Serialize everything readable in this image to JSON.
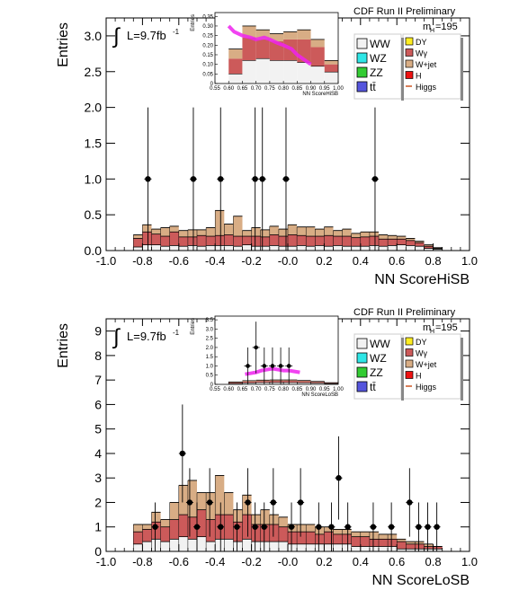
{
  "legend_items": [
    {
      "label": "WW",
      "color": "#f2f2f2",
      "col": 0
    },
    {
      "label": "WZ",
      "color": "#2ee6e6",
      "col": 0
    },
    {
      "label": "ZZ",
      "color": "#33cc33",
      "col": 0
    },
    {
      "label": "tt̄",
      "color": "#5555dd",
      "col": 0
    },
    {
      "label": "DY",
      "color": "#ffee22",
      "col": 1
    },
    {
      "label": "Wγ",
      "color": "#cc5a5a",
      "col": 1
    },
    {
      "label": "W+jet",
      "color": "#d8ad85",
      "col": 1
    },
    {
      "label": "H",
      "color": "#ee1111",
      "col": 1
    },
    {
      "label": "Higgs",
      "color": "#cc5522",
      "col": 1,
      "line": true
    }
  ],
  "chart_data": [
    {
      "id": "top",
      "type": "bar",
      "header": "CDF Run II Preliminary",
      "mass_label": "m",
      "mass_sub": "H",
      "mass_value": "=195",
      "lumi_label": "L=9.7fb",
      "lumi_sup": "-1",
      "integral": "∫",
      "ylabel": "Entries",
      "xlabel": "NN ScoreHiSB",
      "xlim": [
        -1.0,
        1.0
      ],
      "ylim": [
        0,
        3.25
      ],
      "xticks": [
        "-1.0",
        "-0.8",
        "-0.6",
        "-0.4",
        "-0.2",
        "-0.0",
        "0.2",
        "0.4",
        "0.6",
        "0.8",
        "1.0"
      ],
      "xtick_values": [
        -1.0,
        -0.8,
        -0.6,
        -0.4,
        -0.2,
        0.0,
        0.2,
        0.4,
        0.6,
        0.8,
        1.0
      ],
      "yticks": [
        "0.0",
        "0.5",
        "1.0",
        "1.5",
        "2.0",
        "2.5",
        "3.0"
      ],
      "ytick_values": [
        0,
        0.5,
        1.0,
        1.5,
        2.0,
        2.5,
        3.0
      ],
      "bin_edges_start": -0.85,
      "bin_width": 0.05,
      "stack": {
        "ww": [
          0.05,
          0.08,
          0.08,
          0.06,
          0.07,
          0.06,
          0.07,
          0.06,
          0.07,
          0.07,
          0.07,
          0.06,
          0.08,
          0.06,
          0.06,
          0.07,
          0.06,
          0.06,
          0.07,
          0.06,
          0.07,
          0.06,
          0.07,
          0.06,
          0.06,
          0.06,
          0.07,
          0.06,
          0.07,
          0.08,
          0.07,
          0.06,
          0.03,
          0.02
        ],
        "wg": [
          0.12,
          0.18,
          0.15,
          0.14,
          0.19,
          0.13,
          0.12,
          0.15,
          0.13,
          0.14,
          0.15,
          0.14,
          0.12,
          0.14,
          0.13,
          0.15,
          0.14,
          0.16,
          0.14,
          0.14,
          0.13,
          0.15,
          0.13,
          0.14,
          0.12,
          0.13,
          0.13,
          0.1,
          0.09,
          0.08,
          0.07,
          0.05,
          0.03,
          0.01
        ],
        "wjet": [
          0.05,
          0.1,
          0.07,
          0.12,
          0.08,
          0.09,
          0.1,
          0.08,
          0.12,
          0.35,
          0.15,
          0.28,
          0.08,
          0.12,
          0.1,
          0.12,
          0.1,
          0.14,
          0.12,
          0.13,
          0.1,
          0.12,
          0.08,
          0.1,
          0.06,
          0.07,
          0.06,
          0.06,
          0.05,
          0.04,
          0.03,
          0.02,
          0.02,
          0.01
        ],
        "total": [
          0.22,
          0.36,
          0.3,
          0.32,
          0.34,
          0.28,
          0.29,
          0.29,
          0.32,
          0.56,
          0.37,
          0.48,
          0.28,
          0.32,
          0.29,
          0.34,
          0.3,
          0.36,
          0.33,
          0.33,
          0.3,
          0.33,
          0.28,
          0.3,
          0.24,
          0.26,
          0.26,
          0.22,
          0.21,
          0.2,
          0.17,
          0.13,
          0.08,
          0.04
        ]
      },
      "data_points": {
        "x": [
          -0.77,
          -0.52,
          -0.37,
          -0.18,
          -0.14,
          -0.01,
          0.48
        ],
        "y": [
          1,
          1,
          1,
          1,
          1,
          1,
          1
        ],
        "err": [
          1.0,
          1.0,
          1.0,
          1.0,
          1.0,
          1.0,
          1.0
        ]
      },
      "inset": {
        "ylabel": "Entries",
        "xlabel": "NN ScoreHiSB",
        "xlim": [
          0.55,
          1.0
        ],
        "ylim": [
          0,
          0.37
        ],
        "xticks": [
          "0.55",
          "0.60",
          "0.65",
          "0.70",
          "0.75",
          "0.80",
          "0.85",
          "0.90",
          "0.95",
          "1.00"
        ],
        "xtick_values": [
          0.55,
          0.6,
          0.65,
          0.7,
          0.75,
          0.8,
          0.85,
          0.9,
          0.95,
          1.0
        ],
        "yticks": [
          "0",
          "0.05",
          "0.10",
          "0.15",
          "0.20",
          "0.25",
          "0.30",
          "0.35"
        ],
        "ytick_values": [
          0,
          0.05,
          0.1,
          0.15,
          0.2,
          0.25,
          0.3,
          0.35
        ],
        "bin_edges": [
          0.6,
          0.65,
          0.7,
          0.75,
          0.8,
          0.85,
          0.9,
          0.95
        ],
        "ww": [
          0.05,
          0.12,
          0.13,
          0.12,
          0.12,
          0.11,
          0.09,
          0.06
        ],
        "wg": [
          0.08,
          0.12,
          0.1,
          0.1,
          0.11,
          0.12,
          0.1,
          0.04
        ],
        "wjet": [
          0.05,
          0.06,
          0.05,
          0.04,
          0.04,
          0.05,
          0.04,
          0.02
        ],
        "total": [
          0.18,
          0.3,
          0.28,
          0.26,
          0.27,
          0.28,
          0.23,
          0.12
        ],
        "higgs_x": [
          0.6,
          0.62,
          0.65,
          0.68,
          0.7,
          0.73,
          0.75,
          0.78,
          0.8,
          0.83,
          0.85,
          0.88,
          0.9
        ],
        "higgs_y": [
          0.3,
          0.27,
          0.25,
          0.24,
          0.23,
          0.24,
          0.23,
          0.21,
          0.2,
          0.18,
          0.15,
          0.12,
          0.1
        ]
      }
    },
    {
      "id": "bottom",
      "type": "bar",
      "header": "CDF Run II Preliminary",
      "mass_label": "m",
      "mass_sub": "H",
      "mass_value": "=195",
      "lumi_label": "L=9.7fb",
      "lumi_sup": "-1",
      "integral": "∫",
      "ylabel": "Entries",
      "xlabel": "NN ScoreLoSB",
      "xlim": [
        -1.0,
        1.0
      ],
      "ylim": [
        0,
        9.5
      ],
      "xticks": [
        "-1.0",
        "-0.8",
        "-0.6",
        "-0.4",
        "-0.2",
        "-0.0",
        "0.2",
        "0.4",
        "0.6",
        "0.8",
        "1.0"
      ],
      "xtick_values": [
        -1.0,
        -0.8,
        -0.6,
        -0.4,
        -0.2,
        0.0,
        0.2,
        0.4,
        0.6,
        0.8,
        1.0
      ],
      "yticks": [
        "0",
        "1",
        "2",
        "3",
        "4",
        "5",
        "6",
        "7",
        "8",
        "9"
      ],
      "ytick_values": [
        0,
        1,
        2,
        3,
        4,
        5,
        6,
        7,
        8,
        9
      ],
      "bin_edges_start": -0.85,
      "bin_width": 0.05,
      "stack": {
        "ww": [
          0.3,
          0.4,
          0.5,
          0.4,
          0.5,
          0.6,
          0.5,
          0.6,
          0.4,
          0.5,
          0.5,
          0.4,
          0.5,
          0.4,
          0.4,
          0.4,
          0.4,
          0.3,
          0.3,
          0.3,
          0.3,
          0.3,
          0.3,
          0.3,
          0.2,
          0.2,
          0.2,
          0.2,
          0.2,
          0.1,
          0.1,
          0.1,
          0.1,
          0.1
        ],
        "wg": [
          0.5,
          0.5,
          0.7,
          0.6,
          0.8,
          0.9,
          0.9,
          1.1,
          0.9,
          1.0,
          1.0,
          0.8,
          1.0,
          0.7,
          0.7,
          0.7,
          0.6,
          0.5,
          0.5,
          0.5,
          0.4,
          0.5,
          0.4,
          0.4,
          0.4,
          0.4,
          0.3,
          0.3,
          0.3,
          0.3,
          0.2,
          0.2,
          0.1,
          0.1
        ],
        "wjet": [
          0.3,
          0.2,
          0.4,
          0.3,
          0.7,
          1.2,
          1.5,
          0.7,
          1.1,
          1.6,
          0.9,
          0.5,
          0.8,
          0.4,
          0.6,
          0.4,
          0.4,
          0.3,
          0.3,
          0.3,
          0.3,
          0.2,
          0.2,
          0.2,
          0.2,
          0.2,
          0.3,
          0.2,
          0.2,
          0.1,
          0.1,
          0.1,
          0.1,
          0.0
        ],
        "total": [
          1.1,
          1.1,
          1.6,
          1.3,
          2.0,
          2.7,
          2.9,
          2.4,
          2.4,
          3.1,
          2.4,
          1.7,
          2.3,
          1.5,
          1.7,
          1.5,
          1.4,
          1.1,
          1.1,
          1.1,
          1.0,
          1.0,
          0.9,
          0.9,
          0.8,
          0.8,
          0.8,
          0.7,
          0.7,
          0.5,
          0.4,
          0.4,
          0.3,
          0.2
        ]
      },
      "data_points": {
        "x": [
          -0.73,
          -0.58,
          -0.54,
          -0.5,
          -0.43,
          -0.37,
          -0.28,
          -0.22,
          -0.18,
          -0.13,
          -0.08,
          0.02,
          0.07,
          0.17,
          0.24,
          0.28,
          0.33,
          0.47,
          0.57,
          0.67,
          0.72,
          0.77,
          0.82
        ],
        "y": [
          1,
          4,
          2,
          1,
          2,
          1,
          1,
          2,
          1,
          1,
          2,
          1,
          2,
          1,
          1,
          3,
          1,
          1,
          1,
          2,
          1,
          1,
          1
        ],
        "err": [
          1.0,
          2.0,
          1.4,
          1.0,
          1.4,
          1.0,
          1.0,
          1.4,
          1.0,
          1.0,
          1.4,
          1.0,
          1.4,
          1.0,
          1.0,
          1.7,
          1.0,
          1.0,
          1.0,
          1.4,
          1.0,
          1.0,
          1.0
        ]
      },
      "inset": {
        "ylabel": "Entries",
        "xlabel": "NN ScoreLoSB",
        "xlim": [
          0.55,
          1.0
        ],
        "ylim": [
          0,
          3.7
        ],
        "xticks": [
          "0.55",
          "0.60",
          "0.65",
          "0.70",
          "0.75",
          "0.80",
          "0.85",
          "0.90",
          "0.95",
          "1.00"
        ],
        "xtick_values": [
          0.55,
          0.6,
          0.65,
          0.7,
          0.75,
          0.8,
          0.85,
          0.9,
          0.95,
          1.0
        ],
        "yticks": [
          "0",
          "0.5",
          "1.0",
          "1.5",
          "2.0",
          "2.5",
          "3.0",
          "3.5"
        ],
        "ytick_values": [
          0,
          0.5,
          1.0,
          1.5,
          2.0,
          2.5,
          3.0,
          3.5
        ],
        "bin_edges": [
          0.6,
          0.65,
          0.7,
          0.75,
          0.8,
          0.85,
          0.9,
          0.95
        ],
        "ww": [
          0.05,
          0.08,
          0.1,
          0.1,
          0.1,
          0.09,
          0.07,
          0.04
        ],
        "wg": [
          0.05,
          0.07,
          0.08,
          0.09,
          0.09,
          0.08,
          0.06,
          0.03
        ],
        "wjet": [
          0.03,
          0.05,
          0.05,
          0.05,
          0.05,
          0.04,
          0.03,
          0.02
        ],
        "total": [
          0.13,
          0.2,
          0.23,
          0.24,
          0.24,
          0.21,
          0.16,
          0.09
        ],
        "higgs_x": [
          0.66,
          0.68,
          0.7,
          0.72,
          0.74,
          0.76,
          0.78,
          0.8,
          0.82,
          0.84,
          0.86
        ],
        "higgs_y": [
          0.55,
          0.6,
          0.65,
          0.75,
          0.8,
          0.85,
          0.8,
          0.75,
          0.75,
          0.7,
          0.65
        ],
        "points_x": [
          0.67,
          0.7,
          0.73,
          0.76,
          0.79,
          0.82
        ],
        "points_y": [
          1,
          2,
          1,
          1,
          1,
          1
        ],
        "points_err": [
          1.0,
          1.4,
          1.0,
          1.0,
          1.0,
          1.0
        ]
      }
    }
  ]
}
